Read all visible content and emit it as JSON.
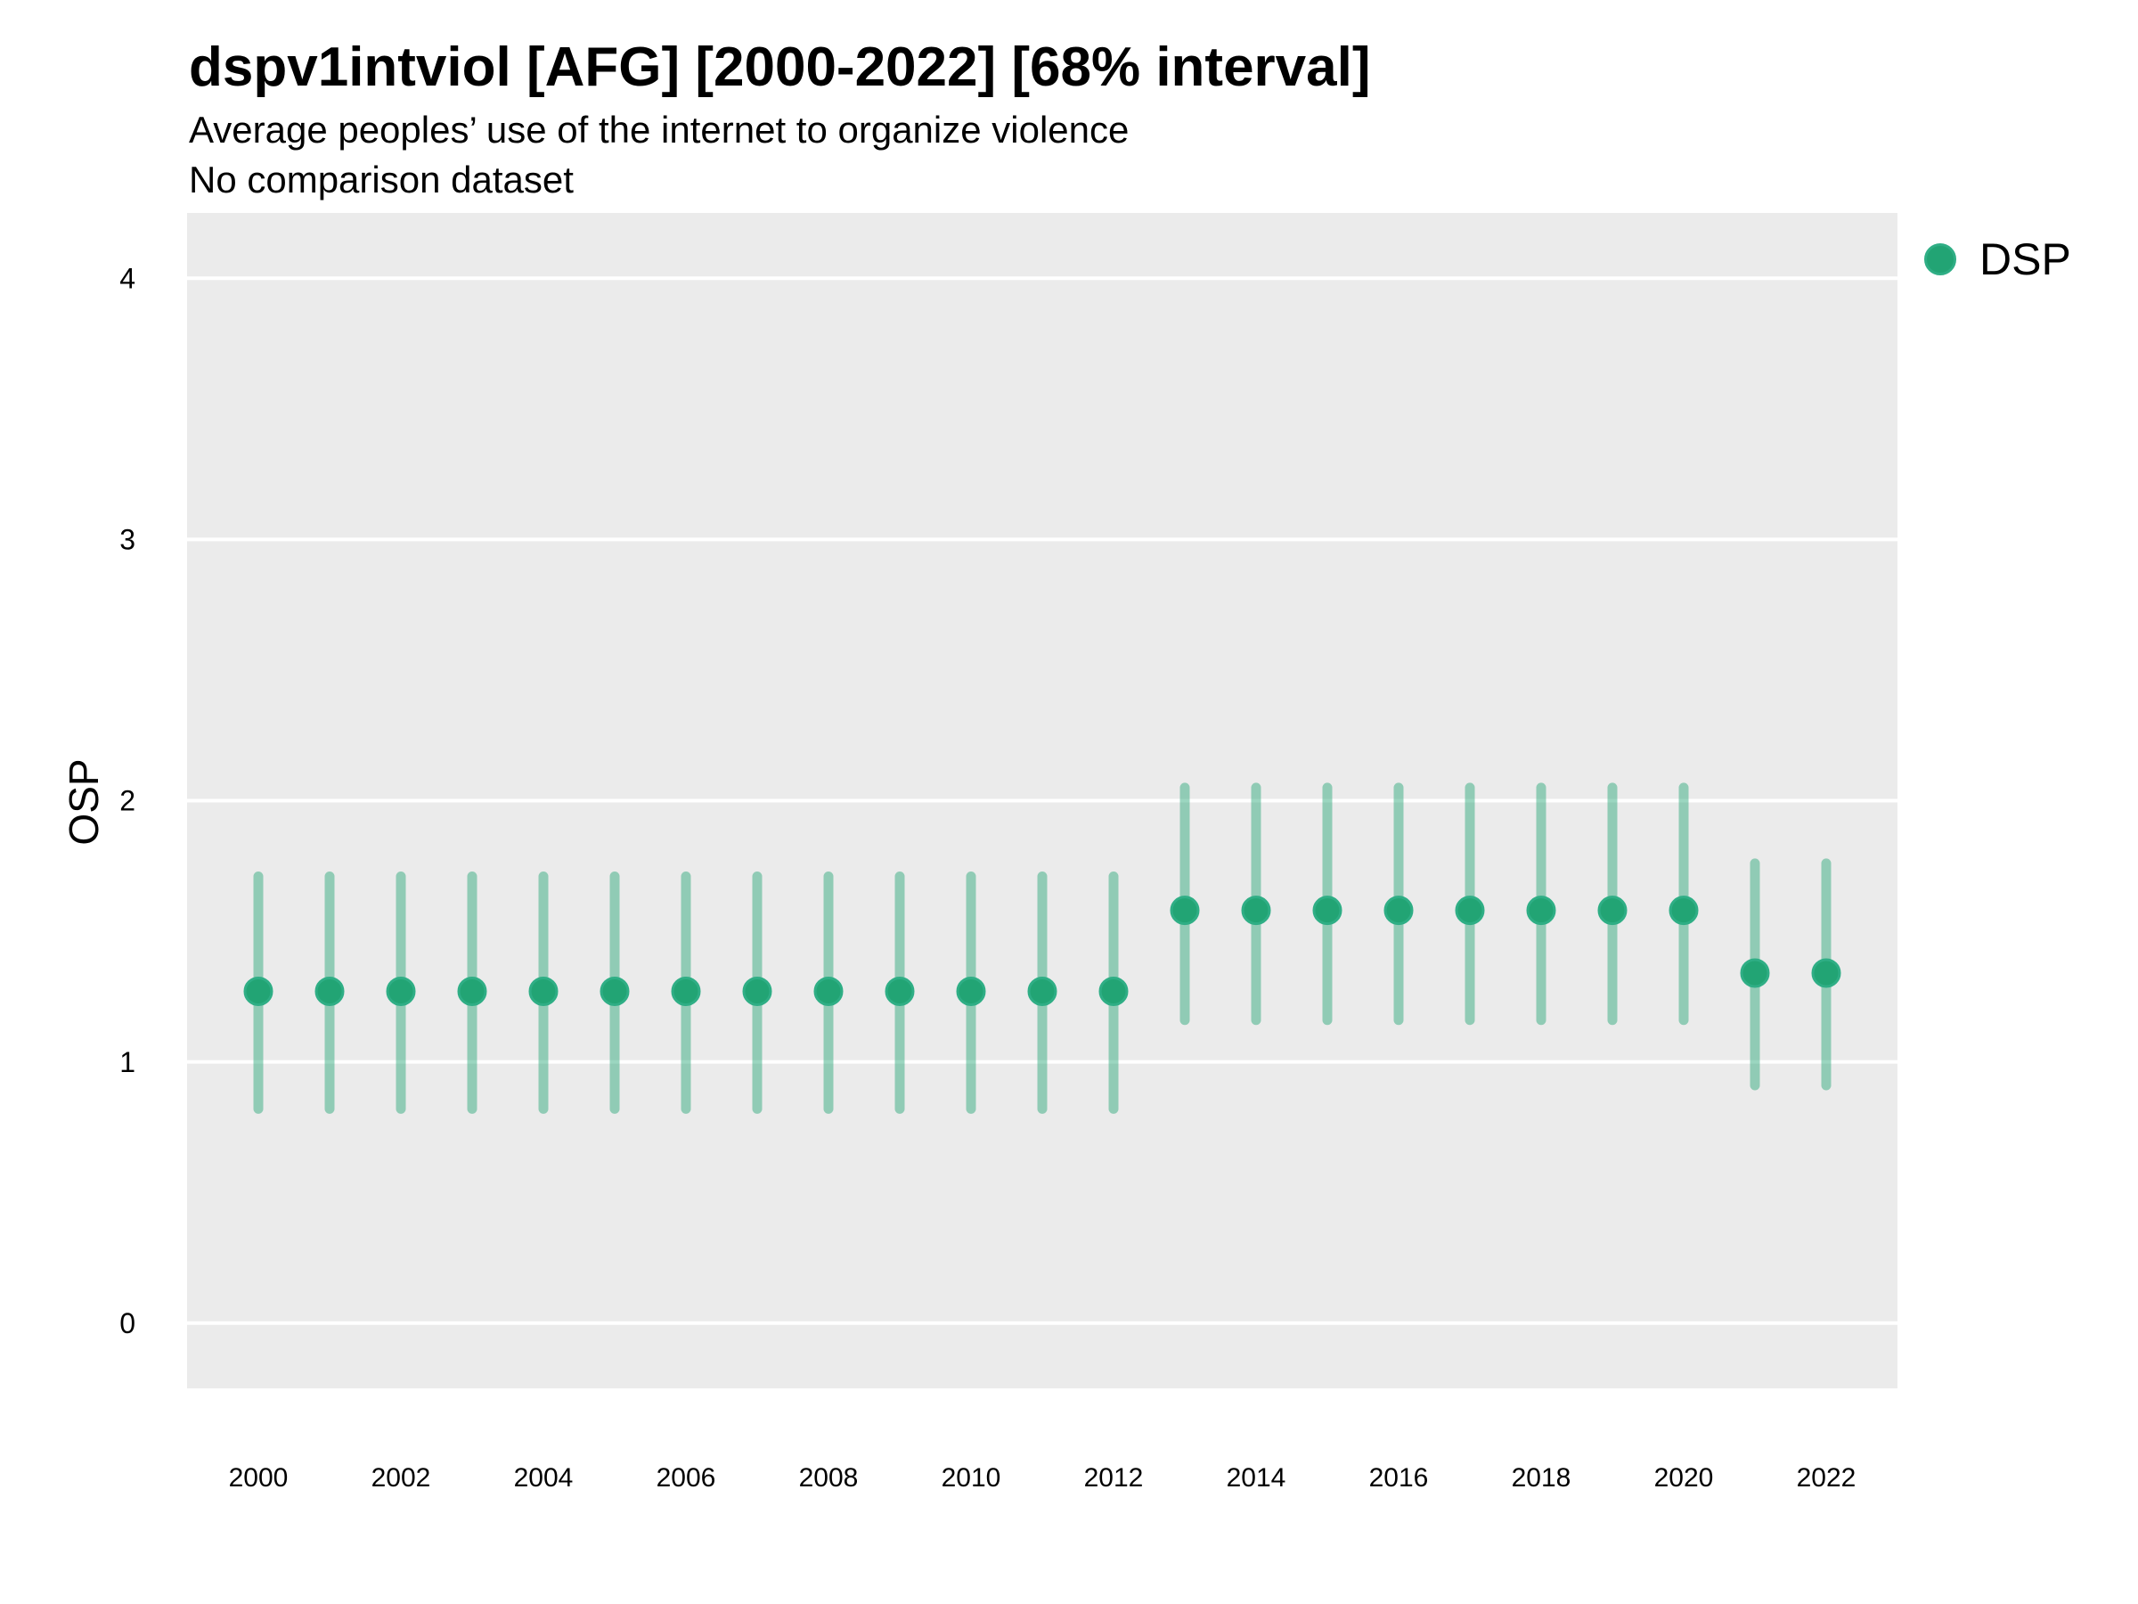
{
  "chart": {
    "title": "dspv1intviol [AFG] [2000-2022] [68% interval]",
    "subtitle": "Average peoples’ use of the internet to organize violence",
    "comparison_note": "No comparison dataset",
    "ylabel": "OSP",
    "legend": [
      {
        "label": "DSP",
        "marker": "circle"
      }
    ]
  },
  "chart_data": {
    "type": "pointrange",
    "title": "dspv1intviol [AFG] [2000-2022] [68% interval]",
    "subtitle": "Average peoples’ use of the internet to organize violence",
    "note": "No comparison dataset",
    "xlabel": "",
    "ylabel": "OSP",
    "series_name": "DSP",
    "interval_label": "68% interval",
    "x": [
      2000,
      2001,
      2002,
      2003,
      2004,
      2005,
      2006,
      2007,
      2008,
      2009,
      2010,
      2011,
      2012,
      2013,
      2014,
      2015,
      2016,
      2017,
      2018,
      2019,
      2020,
      2021,
      2022
    ],
    "estimates": [
      1.27,
      1.27,
      1.27,
      1.27,
      1.27,
      1.27,
      1.27,
      1.27,
      1.27,
      1.27,
      1.27,
      1.27,
      1.27,
      1.58,
      1.58,
      1.58,
      1.58,
      1.58,
      1.58,
      1.58,
      1.58,
      1.34,
      1.34
    ],
    "lower": [
      0.82,
      0.82,
      0.82,
      0.82,
      0.82,
      0.82,
      0.82,
      0.82,
      0.82,
      0.82,
      0.82,
      0.82,
      0.82,
      1.16,
      1.16,
      1.16,
      1.16,
      1.16,
      1.16,
      1.16,
      1.16,
      0.91,
      0.91
    ],
    "upper": [
      1.71,
      1.71,
      1.71,
      1.71,
      1.71,
      1.71,
      1.71,
      1.71,
      1.71,
      1.71,
      1.71,
      1.71,
      1.71,
      2.05,
      2.05,
      2.05,
      2.05,
      2.05,
      2.05,
      2.05,
      2.05,
      1.76,
      1.76
    ],
    "x_tick_labels": [
      "2000",
      "2002",
      "2004",
      "2006",
      "2008",
      "2010",
      "2012",
      "2014",
      "2016",
      "2018",
      "2020",
      "2022"
    ],
    "x_tick_values": [
      2000,
      2002,
      2004,
      2006,
      2008,
      2010,
      2012,
      2014,
      2016,
      2018,
      2020,
      2022
    ],
    "y_ticks": [
      0,
      1,
      2,
      3,
      4
    ],
    "y_domain": [
      -0.25,
      4.25
    ],
    "x_domain": [
      1999,
      2023
    ],
    "grid": "major-y-only",
    "legend_position": "right-top",
    "colors": {
      "point_fill": "#22a474",
      "point_stroke": "#2fae85",
      "range_line": "rgba(34,164,116,0.45)",
      "panel_background": "#ebebeb",
      "gridline": "#ffffff",
      "text": "#000000"
    }
  }
}
